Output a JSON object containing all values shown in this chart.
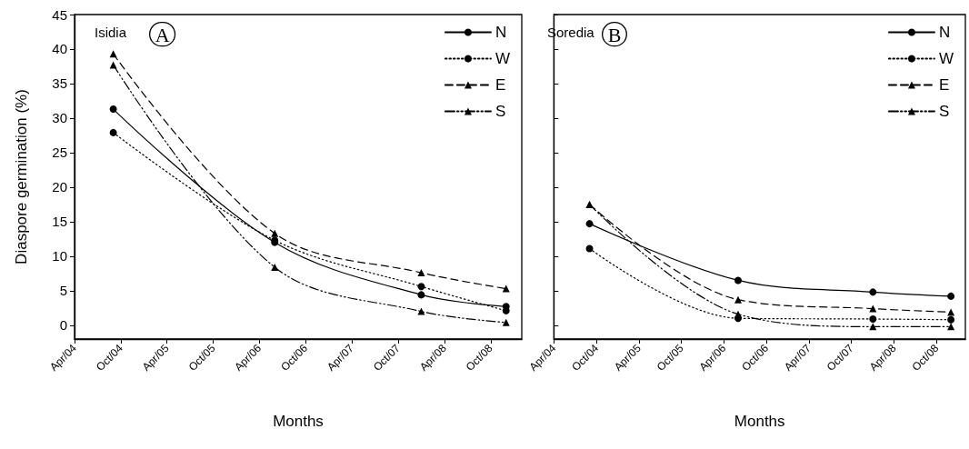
{
  "chart_data": [
    {
      "type": "line",
      "title": "Isidia",
      "annotations": [
        "A"
      ],
      "xlabel": "Months",
      "ylabel": "Diaspore germination (%)",
      "x": [
        "2004-09",
        "2006-06",
        "2008-01",
        "2008-12"
      ],
      "series": [
        {
          "name": "N",
          "color": "#000000",
          "values": [
            31.3,
            12.0,
            4.4,
            2.7
          ],
          "marker": "circle",
          "line_style": "solid"
        },
        {
          "name": "W",
          "color": "#000000",
          "values": [
            27.9,
            12.3,
            5.6,
            2.1
          ],
          "marker": "circle",
          "line_style": "dotted"
        },
        {
          "name": "E",
          "color": "#000000",
          "values": [
            39.3,
            13.3,
            7.6,
            5.3
          ],
          "marker": "triangle",
          "line_style": "dashed"
        },
        {
          "name": "S",
          "color": "#000000",
          "values": [
            37.7,
            8.4,
            2.0,
            0.4
          ],
          "marker": "triangle",
          "line_style": "dashdotdot"
        }
      ],
      "xlim": [
        "2004-04",
        "2009-02"
      ],
      "xticks": [
        {
          "value": "2004-04",
          "label": "Apr/04"
        },
        {
          "value": "2004-10",
          "label": "Oct/04"
        },
        {
          "value": "2005-04",
          "label": "Apr/05"
        },
        {
          "value": "2005-10",
          "label": "Oct/05"
        },
        {
          "value": "2006-04",
          "label": "Apr/06"
        },
        {
          "value": "2006-10",
          "label": "Oct/06"
        },
        {
          "value": "2007-04",
          "label": "Apr/07"
        },
        {
          "value": "2007-10",
          "label": "Oct/07"
        },
        {
          "value": "2008-04",
          "label": "Apr/08"
        },
        {
          "value": "2008-10",
          "label": "Oct/08"
        }
      ],
      "ylim": [
        -2,
        45
      ],
      "yticks": [
        0,
        5,
        10,
        15,
        20,
        25,
        30,
        35,
        40,
        45
      ],
      "legend": "top right",
      "grid": false
    },
    {
      "type": "line",
      "title": "Soredia",
      "annotations": [
        "B"
      ],
      "xlabel": "Months",
      "x": [
        "2004-09",
        "2006-06",
        "2008-01",
        "2008-12"
      ],
      "series": [
        {
          "name": "N",
          "color": "#000000",
          "values": [
            14.7,
            6.5,
            4.8,
            4.2
          ],
          "marker": "circle",
          "line_style": "solid"
        },
        {
          "name": "W",
          "color": "#000000",
          "values": [
            11.1,
            1.0,
            0.9,
            0.8
          ],
          "marker": "circle",
          "line_style": "dotted"
        },
        {
          "name": "E",
          "color": "#000000",
          "values": [
            17.5,
            3.7,
            2.4,
            1.9
          ],
          "marker": "triangle",
          "line_style": "dashed"
        },
        {
          "name": "S",
          "color": "#000000",
          "values": [
            17.5,
            1.6,
            -0.2,
            -0.2
          ],
          "marker": "triangle",
          "line_style": "dashdotdot"
        }
      ],
      "xlim": [
        "2004-04",
        "2009-02"
      ],
      "xticks": [
        {
          "value": "2004-04",
          "label": "Apr/04"
        },
        {
          "value": "2004-10",
          "label": "Oct/04"
        },
        {
          "value": "2005-04",
          "label": "Apr/05"
        },
        {
          "value": "2005-10",
          "label": "Oct/05"
        },
        {
          "value": "2006-04",
          "label": "Apr/06"
        },
        {
          "value": "2006-10",
          "label": "Oct/06"
        },
        {
          "value": "2007-04",
          "label": "Apr/07"
        },
        {
          "value": "2007-10",
          "label": "Oct/07"
        },
        {
          "value": "2008-04",
          "label": "Apr/08"
        },
        {
          "value": "2008-10",
          "label": "Oct/08"
        }
      ],
      "ylim": [
        -2,
        45
      ],
      "yticks": [
        0,
        5,
        10,
        15,
        20,
        25,
        30,
        35,
        40,
        45
      ],
      "tick_labels": "x",
      "legend": "top right",
      "grid": false
    }
  ]
}
